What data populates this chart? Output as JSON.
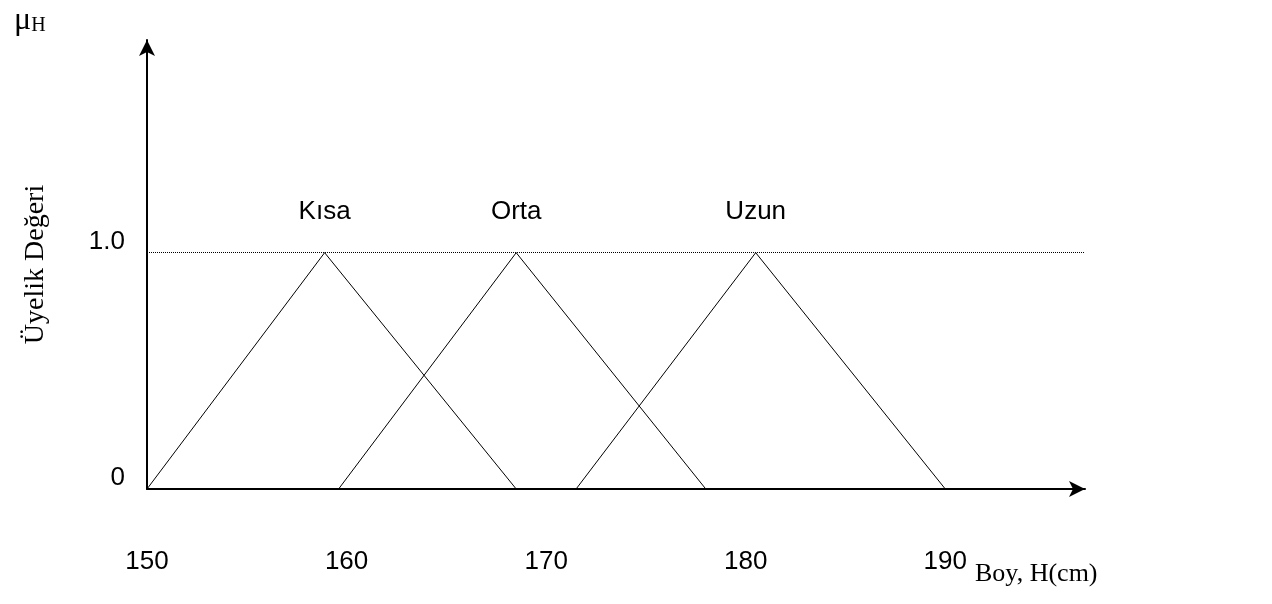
{
  "chart_data": {
    "type": "line",
    "xlabel": "Boy, H(cm)",
    "ylabel": "Üyelik Değeri",
    "annotations": [
      "μ$_{H}$"
    ],
    "xlim": [
      150,
      197
    ],
    "xticks": [
      150,
      160,
      170,
      180,
      190
    ],
    "ylim": [
      0,
      1.9
    ],
    "yticks": [
      0,
      {
        "value": 1,
        "label": "1.0"
      }
    ],
    "series": [
      {
        "name": "Kısa",
        "color": "#000000",
        "x": [
          150,
          158.9,
          168.5
        ],
        "values": [
          0,
          1,
          0
        ]
      },
      {
        "name": "Orta",
        "color": "#000000",
        "x": [
          159.6,
          168.5,
          178
        ],
        "values": [
          0,
          1,
          0
        ]
      },
      {
        "name": "Uzun",
        "color": "#000000",
        "x": [
          171.5,
          180.5,
          190
        ],
        "values": [
          0,
          1,
          0
        ]
      }
    ],
    "ref_lines": [
      {
        "axis": "y",
        "value": 1,
        "line_style": "dotted"
      }
    ],
    "grid": false,
    "legend": false,
    "marker": "none",
    "line_style": "solid"
  }
}
